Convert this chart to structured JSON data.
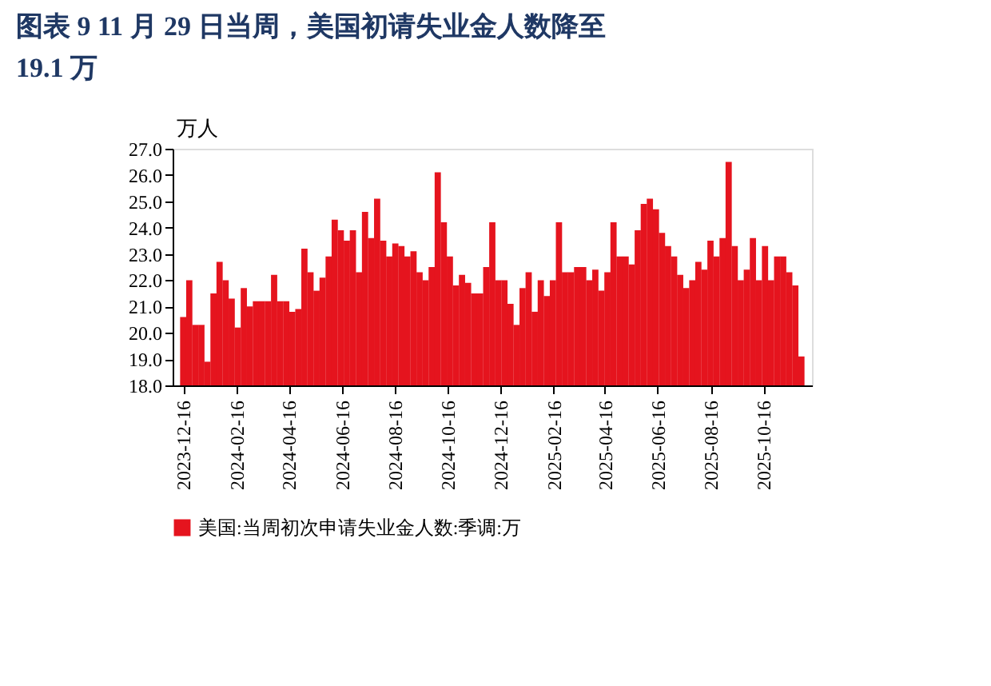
{
  "chart_data": {
    "type": "bar",
    "title": "图表 9   11 月 29 日当周，美国初请失业金人数降至19.1 万",
    "ylabel": "万人",
    "x": [
      "2023-12-16",
      "2023-12-23",
      "2023-12-30",
      "2024-01-06",
      "2024-01-13",
      "2024-01-20",
      "2024-01-27",
      "2024-02-03",
      "2024-02-10",
      "2024-02-17",
      "2024-02-24",
      "2024-03-02",
      "2024-03-09",
      "2024-03-16",
      "2024-03-23",
      "2024-03-30",
      "2024-04-06",
      "2024-04-13",
      "2024-04-20",
      "2024-04-27",
      "2024-05-04",
      "2024-05-11",
      "2024-05-18",
      "2024-05-25",
      "2024-06-01",
      "2024-06-08",
      "2024-06-15",
      "2024-06-22",
      "2024-06-29",
      "2024-07-06",
      "2024-07-13",
      "2024-07-20",
      "2024-07-27",
      "2024-08-03",
      "2024-08-10",
      "2024-08-17",
      "2024-08-24",
      "2024-08-31",
      "2024-09-07",
      "2024-09-14",
      "2024-09-21",
      "2024-09-28",
      "2024-10-05",
      "2024-10-12",
      "2024-10-19",
      "2024-10-26",
      "2024-11-02",
      "2024-11-09",
      "2024-11-16",
      "2024-11-23",
      "2024-11-30",
      "2024-12-07",
      "2024-12-14",
      "2024-12-21",
      "2024-12-28",
      "2025-01-04",
      "2025-01-11",
      "2025-01-18",
      "2025-01-25",
      "2025-02-01",
      "2025-02-08",
      "2025-02-15",
      "2025-02-22",
      "2025-03-01",
      "2025-03-08",
      "2025-03-15",
      "2025-03-22",
      "2025-03-29",
      "2025-04-05",
      "2025-04-12",
      "2025-04-19",
      "2025-04-26",
      "2025-05-03",
      "2025-05-10",
      "2025-05-17",
      "2025-05-24",
      "2025-05-31",
      "2025-06-07",
      "2025-06-14",
      "2025-06-21",
      "2025-06-28",
      "2025-07-05",
      "2025-07-12",
      "2025-07-19",
      "2025-07-26",
      "2025-08-02",
      "2025-08-09",
      "2025-08-16",
      "2025-08-23",
      "2025-08-30",
      "2025-09-06",
      "2025-09-13",
      "2025-09-20",
      "2025-09-27",
      "2025-10-04",
      "2025-10-11",
      "2025-10-18",
      "2025-10-25",
      "2025-11-01",
      "2025-11-08",
      "2025-11-15",
      "2025-11-22",
      "2025-11-29"
    ],
    "series": [
      {
        "name": "美国:当周初次申请失业金人数:季调:万",
        "color": "#e5141e",
        "values": [
          20.6,
          22.0,
          20.3,
          20.3,
          18.9,
          21.5,
          22.7,
          22.0,
          21.3,
          20.2,
          21.7,
          21.0,
          21.2,
          21.2,
          21.2,
          22.2,
          21.2,
          21.2,
          20.8,
          20.9,
          23.2,
          22.3,
          21.6,
          22.1,
          22.9,
          24.3,
          23.9,
          23.5,
          23.9,
          22.3,
          24.6,
          23.6,
          25.1,
          23.5,
          22.9,
          23.4,
          23.3,
          22.9,
          23.1,
          22.3,
          22.0,
          22.5,
          26.1,
          24.2,
          22.9,
          21.8,
          22.2,
          21.9,
          21.5,
          21.5,
          22.5,
          24.2,
          22.0,
          22.0,
          21.1,
          20.3,
          21.7,
          22.3,
          20.8,
          22.0,
          21.4,
          22.0,
          24.2,
          22.3,
          22.3,
          22.5,
          22.5,
          22.0,
          22.4,
          21.6,
          22.3,
          24.2,
          22.9,
          22.9,
          22.6,
          23.9,
          24.9,
          25.1,
          24.7,
          23.8,
          23.3,
          22.9,
          22.2,
          21.7,
          22.0,
          22.7,
          22.4,
          23.5,
          22.9,
          23.6,
          26.5,
          23.3,
          22.0,
          22.4,
          23.6,
          22.0,
          23.3,
          22.0,
          22.9,
          22.9,
          22.3,
          21.8,
          19.1
        ]
      }
    ],
    "xlim": [
      "2023-12-13",
      "2025-12-02"
    ],
    "xticks": [
      "2023-12-16",
      "2024-02-16",
      "2024-04-16",
      "2024-06-16",
      "2024-08-16",
      "2024-10-16",
      "2024-12-16",
      "2025-02-16",
      "2025-04-16",
      "2025-06-16",
      "2025-08-16",
      "2025-10-16"
    ],
    "ylim": [
      18,
      27
    ],
    "yticks": [
      {
        "value": 18,
        "label": "18.0"
      },
      {
        "value": 19,
        "label": "19.0"
      },
      {
        "value": 20,
        "label": "20.0"
      },
      {
        "value": 21,
        "label": "21.0"
      },
      {
        "value": 22,
        "label": "22.0"
      },
      {
        "value": 23,
        "label": "23.0"
      },
      {
        "value": 24,
        "label": "24.0"
      },
      {
        "value": 25,
        "label": "25.0"
      },
      {
        "value": 26,
        "label": "26.0"
      },
      {
        "value": 27,
        "label": "27.0"
      }
    ],
    "grid": false,
    "legend": "bottom"
  }
}
